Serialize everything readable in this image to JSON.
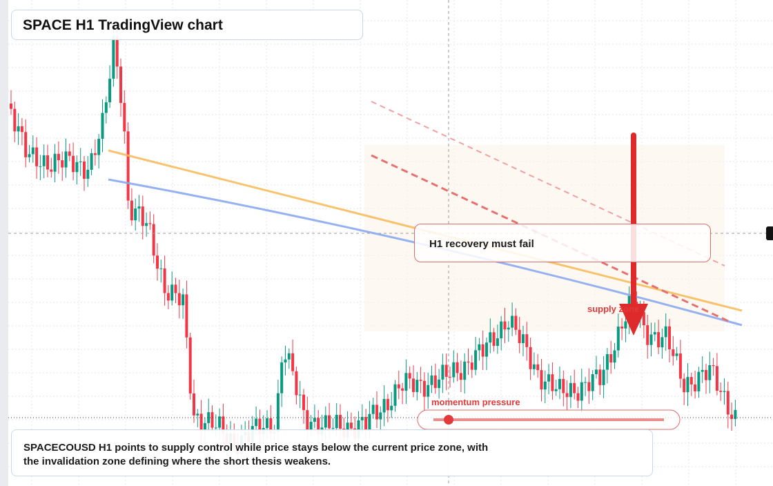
{
  "header": {
    "title": "SPACE H1 TradingView chart"
  },
  "annotations": {
    "recovery": "H1 recovery must fail",
    "supply": "supply zone",
    "momentum": "momentum pressure"
  },
  "summary": {
    "text": "SPACECOUSD H1 points to supply control while price stays below the current price zone, with the invalidation zone defining where the short thesis weakens."
  }
}
